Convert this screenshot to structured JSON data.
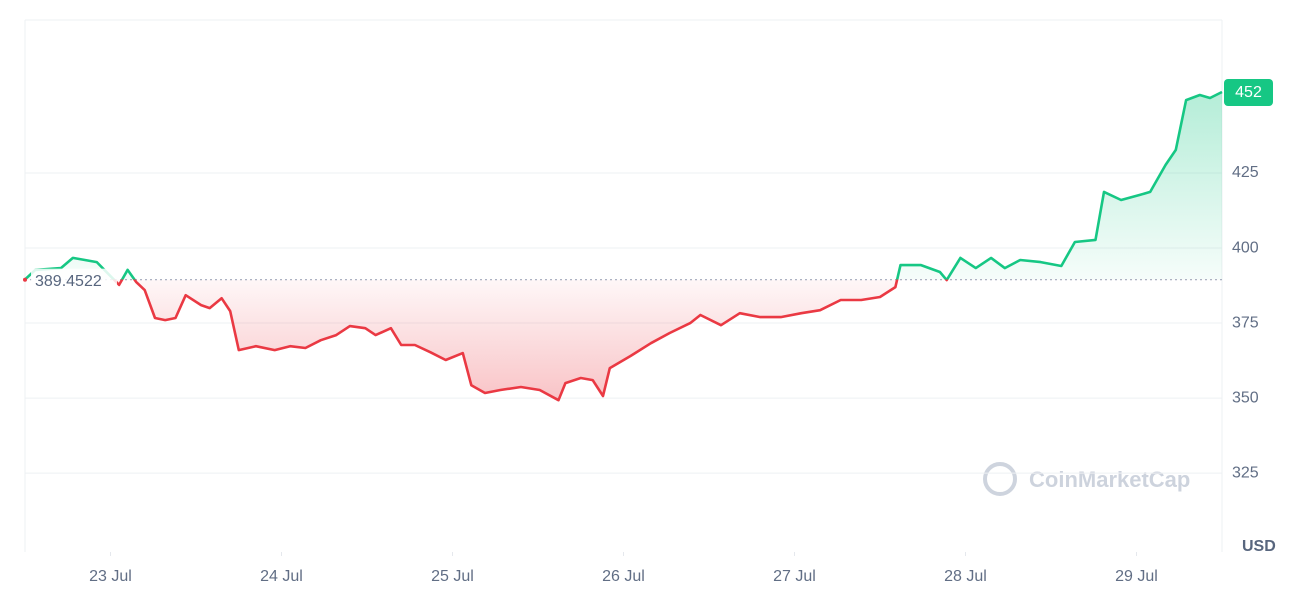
{
  "chart_data": {
    "type": "line",
    "x": [
      22.5,
      22.56,
      22.71,
      22.78,
      22.85,
      22.92,
      23.05,
      23.1,
      23.15,
      23.2,
      23.26,
      23.32,
      23.38,
      23.44,
      23.53,
      23.58,
      23.65,
      23.7,
      23.75,
      23.85,
      23.96,
      24.05,
      24.14,
      24.23,
      24.32,
      24.4,
      24.49,
      24.55,
      24.64,
      24.7,
      24.78,
      24.87,
      24.96,
      25.06,
      25.11,
      25.19,
      25.28,
      25.4,
      25.51,
      25.62,
      25.66,
      25.75,
      25.82,
      25.88,
      25.92,
      26.04,
      26.16,
      26.27,
      26.39,
      26.45,
      26.57,
      26.68,
      26.8,
      26.92,
      27.04,
      27.15,
      27.27,
      27.39,
      27.5,
      27.59,
      27.62,
      27.74,
      27.85,
      27.89,
      27.97,
      28.06,
      28.15,
      28.23,
      28.32,
      28.44,
      28.56,
      28.64,
      28.76,
      28.81,
      28.91,
      29.02,
      29.08,
      29.17,
      29.23,
      29.29,
      29.37,
      29.43,
      29.5
    ],
    "values": [
      389.5,
      392.7,
      393.3,
      396.7,
      396,
      395.3,
      387.7,
      392.7,
      388.7,
      386,
      376.7,
      376,
      376.7,
      384.3,
      381,
      380,
      383.3,
      379,
      366,
      367.3,
      366,
      367.3,
      366.7,
      369.3,
      371,
      374,
      373.3,
      371,
      373.3,
      367.7,
      367.7,
      365.3,
      362.7,
      365,
      354.3,
      351.7,
      352.7,
      353.7,
      352.7,
      349.3,
      355,
      356.7,
      356,
      350.7,
      360,
      364,
      368.3,
      371.7,
      375,
      377.7,
      374.3,
      378.3,
      377,
      377,
      378.3,
      379.3,
      382.7,
      382.7,
      383.7,
      387,
      394.3,
      394.3,
      392,
      389.3,
      396.7,
      393.3,
      396.7,
      393.3,
      396,
      395.3,
      394,
      402,
      402.7,
      418.7,
      416,
      417.7,
      418.7,
      427.7,
      432.7,
      449.3,
      451,
      450,
      452
    ],
    "color_up": "#16c784",
    "color_down": "#ea3943",
    "baseline": 389.4522,
    "xlim": [
      22.5,
      29.5
    ],
    "xticks": [
      {
        "value": 23,
        "label": "23 Jul"
      },
      {
        "value": 24,
        "label": "24 Jul"
      },
      {
        "value": 25,
        "label": "25 Jul"
      },
      {
        "value": 26,
        "label": "26 Jul"
      },
      {
        "value": 27,
        "label": "27 Jul"
      },
      {
        "value": 28,
        "label": "28 Jul"
      },
      {
        "value": 29,
        "label": "29 Jul"
      }
    ],
    "ylim": [
      298.7,
      476
    ],
    "yticks": [
      325,
      350,
      375,
      400,
      425
    ],
    "y_label": "USD",
    "watermark": "CoinMarketCap",
    "grid": true
  }
}
